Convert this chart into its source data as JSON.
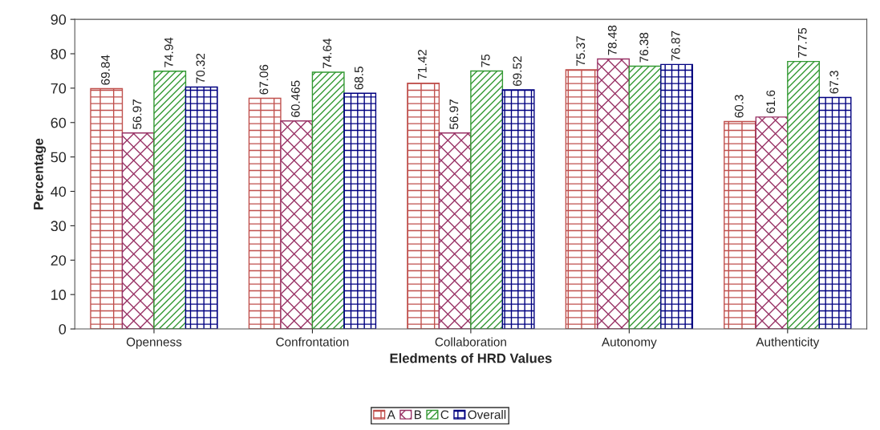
{
  "chart_data": {
    "type": "bar",
    "xlabel": "Eledments of HRD Values",
    "ylabel": "Percentage",
    "categories": [
      "Openness",
      "Confrontation",
      "Collaboration",
      "Autonomy",
      "Authenticity"
    ],
    "series": [
      {
        "name": "A",
        "color": "#c0504d",
        "values": [
          69.84,
          67.06,
          71.42,
          75.37,
          60.3
        ]
      },
      {
        "name": "B",
        "color": "#993366",
        "values": [
          56.97,
          60.465,
          56.97,
          78.48,
          61.6
        ]
      },
      {
        "name": "C",
        "color": "#339933",
        "values": [
          74.94,
          74.64,
          75,
          76.38,
          77.75
        ]
      },
      {
        "name": "Overall",
        "color": "#000080",
        "values": [
          70.32,
          68.5,
          69.52,
          76.87,
          67.3
        ]
      }
    ],
    "ylim": [
      0,
      90
    ],
    "yticks": [
      0,
      10,
      20,
      30,
      40,
      50,
      60,
      70,
      80,
      90
    ],
    "grid": false,
    "data_labels": true,
    "legend": "bottom"
  }
}
